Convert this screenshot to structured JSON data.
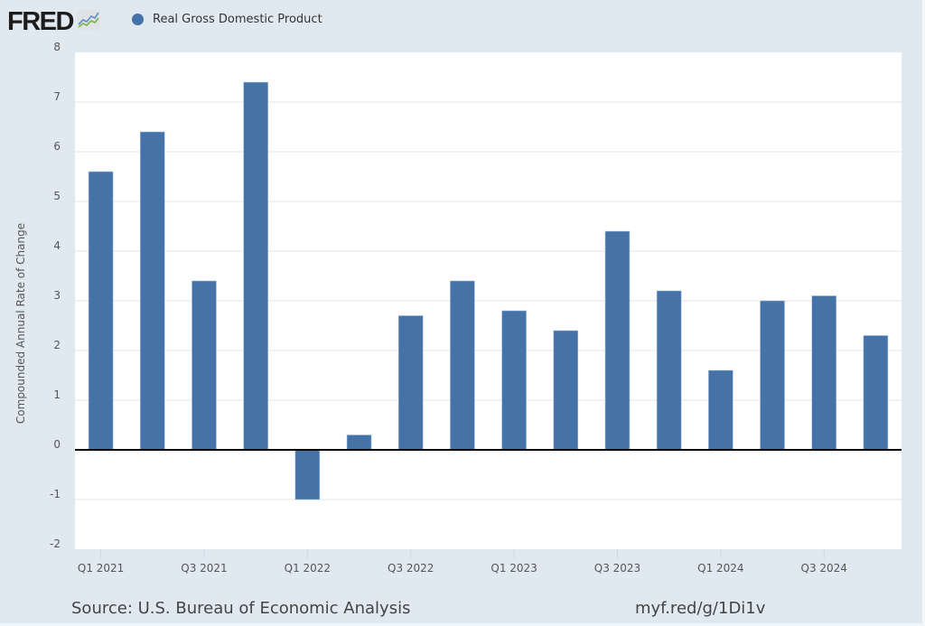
{
  "header": {
    "logo_text": "FRED",
    "logo_icon": "chart-line-icon",
    "legend_label": "Real Gross Domestic Product",
    "series_color": "#4572a7"
  },
  "footer": {
    "source": "Source: U.S. Bureau of Economic Analysis",
    "link": "myf.red/g/1Di1v"
  },
  "chart_data": {
    "type": "bar",
    "title": "",
    "xlabel": "",
    "ylabel": "Compounded Annual Rate of Change",
    "ylim": [
      -2,
      8
    ],
    "yticks": [
      8,
      7,
      6,
      5,
      4,
      3,
      2,
      1,
      0,
      -1,
      -2
    ],
    "grid": true,
    "legend": "top-left",
    "categories": [
      "Q1 2021",
      "Q2 2021",
      "Q3 2021",
      "Q4 2021",
      "Q1 2022",
      "Q2 2022",
      "Q3 2022",
      "Q4 2022",
      "Q1 2023",
      "Q2 2023",
      "Q3 2023",
      "Q4 2023",
      "Q1 2024",
      "Q2 2024",
      "Q3 2024",
      "Q4 2024"
    ],
    "xtick_labels": [
      "Q1 2021",
      "Q3 2021",
      "Q1 2022",
      "Q3 2022",
      "Q1 2023",
      "Q3 2023",
      "Q1 2024",
      "Q3 2024"
    ],
    "series": [
      {
        "name": "Real Gross Domestic Product",
        "values": [
          5.6,
          6.4,
          3.4,
          7.4,
          -1.0,
          0.3,
          2.7,
          3.4,
          2.8,
          2.4,
          4.4,
          3.2,
          1.6,
          3.0,
          3.1,
          2.3
        ]
      }
    ]
  }
}
